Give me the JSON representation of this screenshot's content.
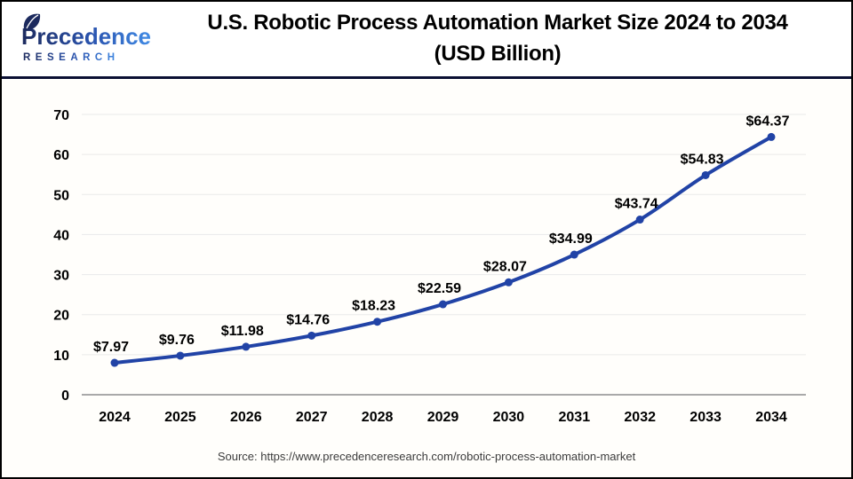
{
  "header": {
    "logo": {
      "brand": "Precedence",
      "sub": "RESEARCH"
    },
    "title_line1": "U.S. Robotic Process Automation Market Size 2024 to 2034",
    "title_line2": "(USD Billion)"
  },
  "footer": {
    "source": "Source: https://www.precedenceresearch.com/robotic-process-automation-market"
  },
  "colors": {
    "line": "#2143a6",
    "marker": "#2143a6",
    "grid": "#eaeaea",
    "axis": "#a9a9a9",
    "divider": "#0a0f33",
    "logo_navy": "#1c2a5e",
    "logo_blue": "#418be5",
    "title_text": "#000000",
    "source_text": "#3c3c3c"
  },
  "chart_data": {
    "type": "line",
    "title": "U.S. Robotic Process Automation Market Size 2024 to 2034 (USD Billion)",
    "categories": [
      "2024",
      "2025",
      "2026",
      "2027",
      "2028",
      "2029",
      "2030",
      "2031",
      "2032",
      "2033",
      "2034"
    ],
    "values": [
      7.97,
      9.76,
      11.98,
      14.76,
      18.23,
      22.59,
      28.07,
      34.99,
      43.74,
      54.83,
      64.37
    ],
    "point_labels": [
      "$7.97",
      "$9.76",
      "$11.98",
      "$14.76",
      "$18.23",
      "$22.59",
      "$28.07",
      "$34.99",
      "$43.74",
      "$54.83",
      "$64.37"
    ],
    "xlabel": "",
    "ylabel": "",
    "ylim": [
      0,
      70
    ],
    "y_ticks": [
      0,
      10,
      20,
      30,
      40,
      50,
      60,
      70
    ],
    "grid": true,
    "legend": "none"
  }
}
